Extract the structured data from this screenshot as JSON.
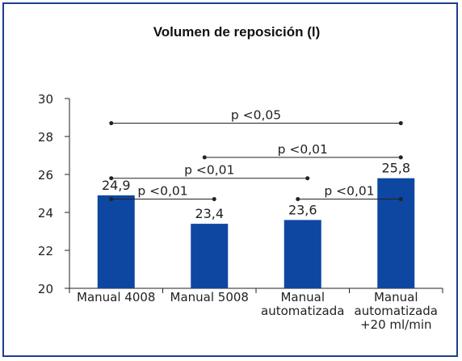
{
  "chart_data": {
    "type": "bar",
    "title": "Volumen de reposición (l)",
    "xlabel": "",
    "ylabel": "",
    "ylim": [
      20,
      30
    ],
    "yticks": [
      20,
      22,
      24,
      26,
      28,
      30
    ],
    "categories": [
      [
        "Manual 4008"
      ],
      [
        "Manual 5008"
      ],
      [
        "Manual",
        "automatizada"
      ],
      [
        "Manual",
        "automatizada",
        "+20 ml/min"
      ]
    ],
    "values": [
      24.9,
      23.4,
      23.6,
      25.8
    ],
    "value_labels": [
      "24,9",
      "23,4",
      "23,6",
      "25,8"
    ],
    "bar_color": "#0d47a1",
    "grid": false,
    "annotations": [
      {
        "text": "p <0,05",
        "from": 0,
        "to": 3,
        "level": 28.7
      },
      {
        "text": "p <0,01",
        "from": 1,
        "to": 3,
        "level": 26.9
      },
      {
        "text": "p <0,01",
        "from": 0,
        "to": 2,
        "level": 25.8
      },
      {
        "text": "p <0,01",
        "from": 0,
        "to": 1,
        "level": 24.7
      },
      {
        "text": "p <0,01",
        "from": 2,
        "to": 3,
        "level": 24.7
      }
    ]
  }
}
